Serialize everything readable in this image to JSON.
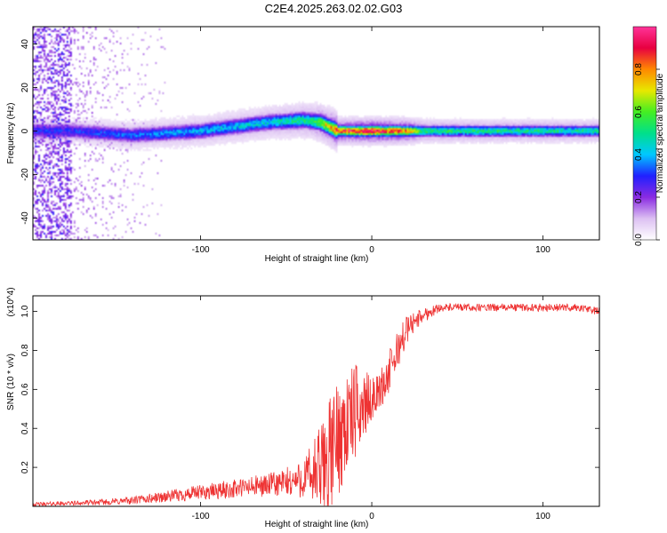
{
  "title": "C2E4.2025.263.02.02.G03",
  "chart_data": [
    {
      "type": "heatmap",
      "name": "spectrogram",
      "xlabel": "Height of straight line (km)",
      "ylabel": "Frequency (Hz)",
      "xlim": [
        -198,
        133
      ],
      "ylim": [
        -50,
        48
      ],
      "x_ticks": [
        -100,
        0,
        100
      ],
      "x_tick_labels": [
        "-100",
        "0",
        "100"
      ],
      "y_ticks": [
        -40,
        -20,
        0,
        20,
        40
      ],
      "y_tick_labels": [
        "-40",
        "-20",
        "0",
        "20",
        "40"
      ],
      "colorbar": {
        "label": "Normalized spectral amplitude",
        "range": [
          0,
          1
        ],
        "ticks": [
          0.0,
          0.2,
          0.4,
          0.6,
          0.8
        ],
        "tick_labels": [
          "0.0",
          "0.2",
          "0.4",
          "0.6",
          "0.8"
        ],
        "colors": [
          "#ffffff",
          "#dcc0f2",
          "#8a2be2",
          "#2020ff",
          "#00c8ff",
          "#00e08a",
          "#44ee22",
          "#e8e800",
          "#ff8800",
          "#e80040",
          "#ff3399"
        ]
      },
      "band_center_track": {
        "x": [
          -175,
          -140,
          -100,
          -80,
          -60,
          -40,
          -30,
          -20,
          0,
          40,
          133
        ],
        "freq": [
          0,
          -2,
          0,
          2,
          4,
          5,
          4,
          0,
          0,
          0,
          0
        ]
      },
      "band_peak_amplitude": {
        "x": [
          -175,
          -140,
          -100,
          -60,
          -35,
          -20,
          0,
          20,
          30,
          133
        ],
        "amp": [
          0.3,
          0.35,
          0.4,
          0.45,
          0.55,
          0.85,
          0.95,
          0.85,
          0.55,
          0.5
        ]
      }
    },
    {
      "type": "line",
      "name": "snr",
      "xlabel": "Height of straight line (km)",
      "ylabel": "SNR (10 * v/v)",
      "y_multiplier": "(x10^4)",
      "xlim": [
        -198,
        133
      ],
      "ylim": [
        0,
        1.08
      ],
      "x_ticks": [
        -100,
        0,
        100
      ],
      "x_tick_labels": [
        "-100",
        "0",
        "100"
      ],
      "y_ticks": [
        0.2,
        0.4,
        0.6,
        0.8,
        1.0
      ],
      "y_tick_labels": [
        "0.2",
        "0.4",
        "0.6",
        "0.8",
        "1.0"
      ],
      "color": "#ee3333",
      "series": [
        {
          "name": "SNR",
          "x": [
            -198,
            -180,
            -160,
            -140,
            -120,
            -100,
            -80,
            -60,
            -50,
            -40,
            -30,
            -25,
            -20,
            -15,
            -10,
            -5,
            0,
            5,
            10,
            15,
            20,
            25,
            30,
            35,
            40,
            60,
            80,
            100,
            120,
            133
          ],
          "y": [
            0.01,
            0.015,
            0.02,
            0.03,
            0.05,
            0.07,
            0.09,
            0.11,
            0.12,
            0.14,
            0.18,
            0.25,
            0.35,
            0.42,
            0.48,
            0.52,
            0.55,
            0.6,
            0.68,
            0.8,
            0.9,
            0.95,
            0.98,
            1.0,
            1.02,
            1.02,
            1.02,
            1.02,
            1.02,
            1.0
          ],
          "noise_amp": [
            0.01,
            0.01,
            0.015,
            0.02,
            0.03,
            0.04,
            0.05,
            0.06,
            0.08,
            0.1,
            0.25,
            0.3,
            0.3,
            0.28,
            0.25,
            0.2,
            0.1,
            0.1,
            0.12,
            0.1,
            0.08,
            0.05,
            0.04,
            0.03,
            0.02,
            0.02,
            0.02,
            0.02,
            0.02,
            0.02
          ]
        }
      ]
    }
  ]
}
